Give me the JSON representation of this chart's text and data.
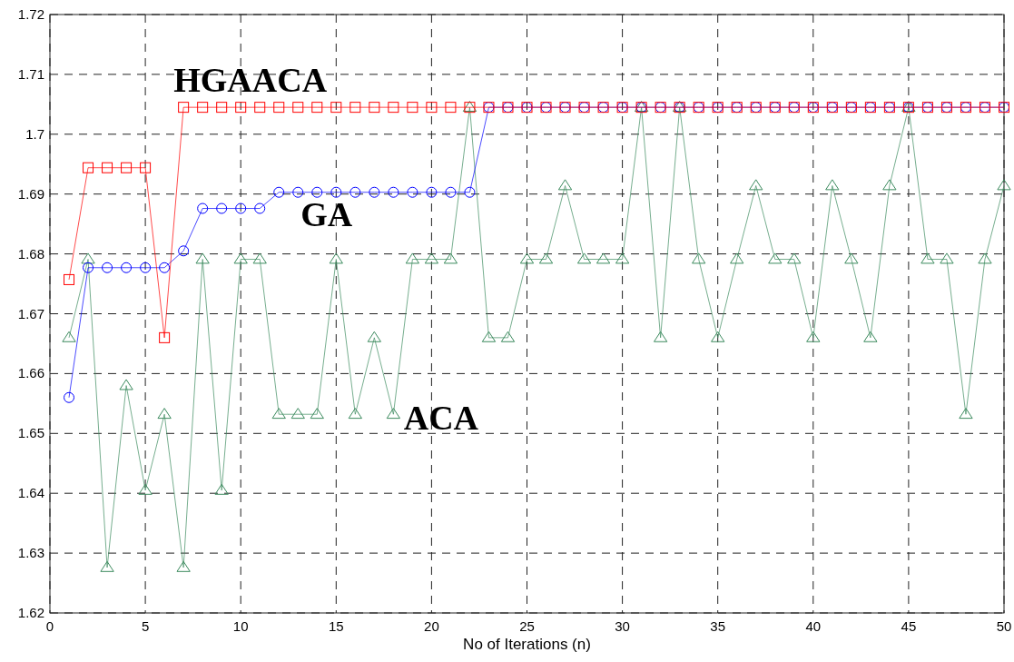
{
  "chart_data": {
    "type": "line",
    "xlabel": "No of Iterations (n)",
    "x": [
      1,
      2,
      3,
      4,
      5,
      6,
      7,
      8,
      9,
      10,
      11,
      12,
      13,
      14,
      15,
      16,
      17,
      18,
      19,
      20,
      21,
      22,
      23,
      24,
      25,
      26,
      27,
      28,
      29,
      30,
      31,
      32,
      33,
      34,
      35,
      36,
      37,
      38,
      39,
      40,
      41,
      42,
      43,
      44,
      45,
      46,
      47,
      48,
      49,
      50
    ],
    "series": [
      {
        "name": "HGAACA",
        "color": "#ff0000",
        "marker": "square",
        "values": [
          1.6757,
          1.6944,
          1.6944,
          1.6944,
          1.6944,
          1.666,
          1.7045,
          1.7045,
          1.7045,
          1.7045,
          1.7045,
          1.7045,
          1.7045,
          1.7045,
          1.7045,
          1.7045,
          1.7045,
          1.7045,
          1.7045,
          1.7045,
          1.7045,
          1.7045,
          1.7045,
          1.7045,
          1.7045,
          1.7045,
          1.7045,
          1.7045,
          1.7045,
          1.7045,
          1.7045,
          1.7045,
          1.7045,
          1.7045,
          1.7045,
          1.7045,
          1.7045,
          1.7045,
          1.7045,
          1.7045,
          1.7045,
          1.7045,
          1.7045,
          1.7045,
          1.7045,
          1.7045,
          1.7045,
          1.7045,
          1.7045,
          1.7045
        ]
      },
      {
        "name": "GA",
        "color": "#0000ff",
        "marker": "circle",
        "values": [
          1.656,
          1.6777,
          1.6777,
          1.6777,
          1.6777,
          1.6777,
          1.6805,
          1.6876,
          1.6876,
          1.6876,
          1.6876,
          1.6903,
          1.6903,
          1.6903,
          1.6903,
          1.6903,
          1.6903,
          1.6903,
          1.6903,
          1.6903,
          1.6903,
          1.6903,
          1.7045,
          1.7045,
          1.7045,
          1.7045,
          1.7045,
          1.7045,
          1.7045,
          1.7045,
          1.7045,
          1.7045,
          1.7045,
          1.7045,
          1.7045,
          1.7045,
          1.7045,
          1.7045,
          1.7045,
          1.7045,
          1.7045,
          1.7045,
          1.7045,
          1.7045,
          1.7045,
          1.7045,
          1.7045,
          1.7045,
          1.7045,
          1.7045
        ]
      },
      {
        "name": "ACA",
        "color": "#3d8b5f",
        "marker": "triangle",
        "values": [
          1.666,
          1.6791,
          1.6276,
          1.658,
          1.6405,
          1.6532,
          1.6276,
          1.6791,
          1.6405,
          1.6791,
          1.6791,
          1.6532,
          1.6532,
          1.6532,
          1.6791,
          1.6532,
          1.666,
          1.6532,
          1.6791,
          1.6791,
          1.6791,
          1.7045,
          1.666,
          1.666,
          1.6791,
          1.6791,
          1.6914,
          1.6791,
          1.6791,
          1.6791,
          1.7045,
          1.666,
          1.7045,
          1.6791,
          1.666,
          1.6791,
          1.6914,
          1.6791,
          1.6791,
          1.666,
          1.6914,
          1.6791,
          1.666,
          1.6914,
          1.7045,
          1.6791,
          1.6791,
          1.6532,
          1.6791,
          1.6914
        ]
      }
    ],
    "xlim": [
      0,
      50
    ],
    "xticks": [
      0,
      5,
      10,
      15,
      20,
      25,
      30,
      35,
      40,
      45,
      50
    ],
    "ylim": [
      1.62,
      1.72
    ],
    "yticks": [
      {
        "value": 1.62,
        "label": "1.62"
      },
      {
        "value": 1.63,
        "label": "1.63"
      },
      {
        "value": 1.64,
        "label": "1.64"
      },
      {
        "value": 1.65,
        "label": "1.65"
      },
      {
        "value": 1.66,
        "label": "1.66"
      },
      {
        "value": 1.67,
        "label": "1.67"
      },
      {
        "value": 1.68,
        "label": "1.68"
      },
      {
        "value": 1.69,
        "label": "1.69"
      },
      {
        "value": 1.7,
        "label": "1.7"
      },
      {
        "value": 1.71,
        "label": "1.71"
      },
      {
        "value": 1.72,
        "label": "1.72"
      }
    ],
    "grid": true,
    "line_style": "solid"
  }
}
